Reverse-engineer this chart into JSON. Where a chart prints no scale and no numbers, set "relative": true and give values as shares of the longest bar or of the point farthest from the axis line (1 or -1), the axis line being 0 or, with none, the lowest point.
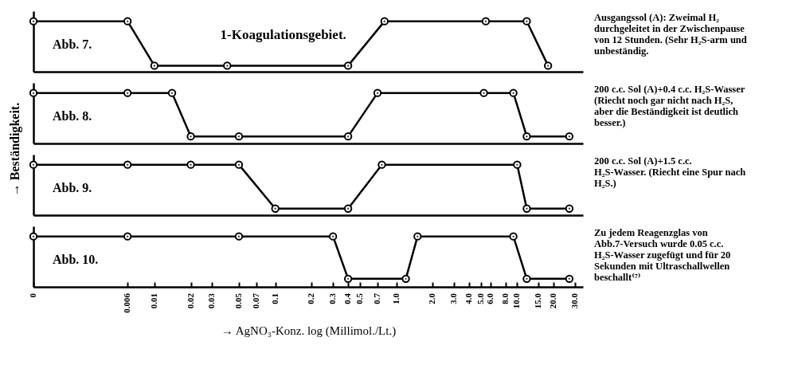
{
  "chart_data": [
    {
      "type": "line",
      "relative": true,
      "log": "x",
      "xlim": [
        0.001,
        35
      ],
      "tick_labels": false,
      "grid": false,
      "marker": "circle",
      "line_style": "solid",
      "x": [
        0.001,
        0.006,
        0.01,
        0.04,
        0.4,
        0.8,
        5.5,
        12,
        18
      ],
      "series": [
        {
          "color": "#000000",
          "values": [
            1,
            1,
            0.12,
            0.12,
            0.12,
            1,
            1,
            1,
            0.12
          ]
        }
      ],
      "annotations": [
        "Abb. 7.",
        "1-Koagulationsgebiet.",
        "Ausgangssol (A): Zweimal H₂ durchgeleitet in der Zwischenpause von 12 Stunden. (Sehr H₂S-arm und unbeständig."
      ]
    },
    {
      "type": "line",
      "relative": true,
      "log": "x",
      "xlim": [
        0.001,
        35
      ],
      "tick_labels": false,
      "grid": false,
      "marker": "circle",
      "line_style": "solid",
      "ylabel": "→ Beständigkeit.",
      "x": [
        0.001,
        0.006,
        0.014,
        0.02,
        0.05,
        0.4,
        0.7,
        5.3,
        9.3,
        12,
        27
      ],
      "series": [
        {
          "color": "#000000",
          "values": [
            1,
            1,
            1,
            0.14,
            0.14,
            0.14,
            1,
            1,
            1,
            0.14,
            0.14
          ]
        }
      ],
      "annotations": [
        "Abb. 8.",
        "200 c.c. Sol (A)+0.4 c.c. H₂S-Wasser (Riecht noch gar nicht nach H₂S, aber die Beständigkeit ist deutlich besser.)"
      ]
    },
    {
      "type": "line",
      "relative": true,
      "log": "x",
      "xlim": [
        0.001,
        35
      ],
      "tick_labels": false,
      "grid": false,
      "marker": "circle",
      "line_style": "solid",
      "x": [
        0.001,
        0.006,
        0.02,
        0.05,
        0.1,
        0.4,
        0.76,
        10,
        12,
        27
      ],
      "series": [
        {
          "color": "#000000",
          "values": [
            1,
            1,
            1,
            1,
            0.13,
            0.13,
            1,
            1,
            0.13,
            0.13
          ]
        }
      ],
      "annotations": [
        "Abb. 9.",
        "200 c.c. Sol (A)+1.5 c.c. H₂S-Wasser. (Riecht eine Spur nach H₂S.)"
      ]
    },
    {
      "type": "line",
      "relative": true,
      "log": "x",
      "xlim": [
        0.001,
        35
      ],
      "tick_labels": "x",
      "grid": false,
      "marker": "circle",
      "line_style": "solid",
      "xlabel": "→ AgNO₃-Konz. log (Millimol./Lt.)",
      "xticks": [
        {
          "value": 0.001,
          "label": "0"
        },
        0.006,
        0.01,
        0.02,
        0.03,
        0.05,
        0.07,
        0.1,
        0.2,
        0.3,
        0.4,
        0.5,
        0.7,
        {
          "value": 1,
          "label": "1.0"
        },
        {
          "value": 2,
          "label": "2.0"
        },
        {
          "value": 3,
          "label": "3.0"
        },
        {
          "value": 4,
          "label": "4.0"
        },
        {
          "value": 5,
          "label": "5.0"
        },
        {
          "value": 6,
          "label": "6.0"
        },
        {
          "value": 8,
          "label": "8.0"
        },
        {
          "value": 10,
          "label": "10.0"
        },
        {
          "value": 15,
          "label": "15.0"
        },
        {
          "value": 20,
          "label": "20.0"
        },
        {
          "value": 30,
          "label": "30.0"
        }
      ],
      "x": [
        0.001,
        0.006,
        0.05,
        0.3,
        0.4,
        1.2,
        1.5,
        9.3,
        12,
        27
      ],
      "series": [
        {
          "color": "#000000",
          "values": [
            1,
            1,
            1,
            1,
            0.16,
            0.16,
            1,
            1,
            0.16,
            0.16
          ]
        }
      ],
      "annotations": [
        "Abb. 10.",
        "Zu jedem Reagenzglas von Abb.7-Versuch wurde 0.05 c.c. H₂S-Wasser zugefügt und für 20 Sekunden mit Ultraschallwellen beschallt⁽⁷⁾"
      ]
    }
  ]
}
